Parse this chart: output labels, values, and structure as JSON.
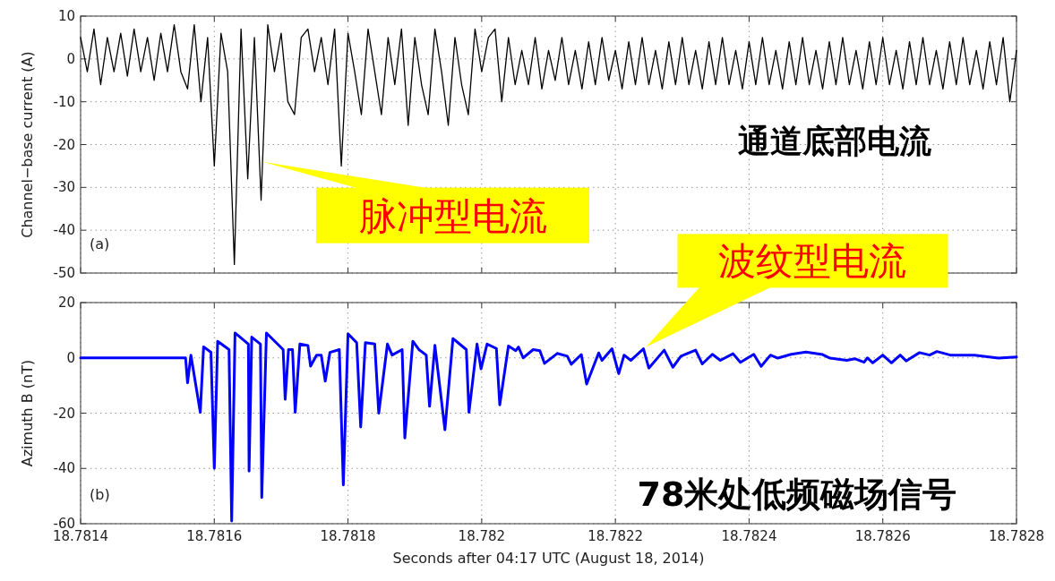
{
  "chart_data": [
    {
      "type": "line",
      "ylabel": "Channel−base current (A)",
      "color": "#000000",
      "grid": true,
      "tick_labels": "y",
      "xlim": [
        18.7814,
        18.7828
      ],
      "xticks": [
        18.7814,
        18.7816,
        18.7818,
        18.782,
        18.7822,
        18.7824,
        18.7826,
        18.7828
      ],
      "ylim": [
        -50,
        10
      ],
      "yticks": [
        -50,
        -40,
        -30,
        -20,
        -10,
        0,
        10
      ],
      "x": [
        18.7814,
        18.78141,
        18.78142,
        18.78143,
        18.78144,
        18.78145,
        18.78146,
        18.78147,
        18.78148,
        18.78149,
        18.7815,
        18.78151,
        18.78152,
        18.78153,
        18.78154,
        18.78155,
        18.78156,
        18.78157,
        18.78158,
        18.78159,
        18.7816,
        18.78161,
        18.78162,
        18.78163,
        18.78164,
        18.78165,
        18.78166,
        18.78167,
        18.78168,
        18.78169,
        18.7817,
        18.78171,
        18.78172,
        18.78173,
        18.78174,
        18.78175,
        18.78176,
        18.78177,
        18.78178,
        18.78179,
        18.7818,
        18.78181,
        18.78182,
        18.78183,
        18.78184,
        18.78185,
        18.78186,
        18.78187,
        18.78188,
        18.78189,
        18.7819,
        18.78191,
        18.78192,
        18.78193,
        18.78194,
        18.78195,
        18.78196,
        18.78197,
        18.78198,
        18.78199,
        18.782,
        18.78201,
        18.78202,
        18.78203,
        18.78204,
        18.78205,
        18.78206,
        18.78207,
        18.78208,
        18.78209,
        18.7821,
        18.78211,
        18.78212,
        18.78213,
        18.78214,
        18.78215,
        18.78216,
        18.78217,
        18.78218,
        18.78219,
        18.7822,
        18.78221,
        18.78222,
        18.78223,
        18.78224,
        18.78225,
        18.78226,
        18.78227,
        18.78228,
        18.78229,
        18.7823,
        18.78231,
        18.78232,
        18.78233,
        18.78234,
        18.78235,
        18.78236,
        18.78237,
        18.78238,
        18.78239,
        18.7824,
        18.78241,
        18.78242,
        18.78243,
        18.78244,
        18.78245,
        18.78246,
        18.78247,
        18.78248,
        18.78249,
        18.7825,
        18.78251,
        18.78252,
        18.78253,
        18.78254,
        18.78255,
        18.78256,
        18.78257,
        18.78258,
        18.78259,
        18.7826,
        18.78261,
        18.78262,
        18.78263,
        18.78264,
        18.78265,
        18.78266,
        18.78267,
        18.78268,
        18.78269,
        18.7827,
        18.78271,
        18.78272,
        18.78273,
        18.78274,
        18.78275,
        18.78276,
        18.78277,
        18.78278,
        18.78279,
        18.7828
      ],
      "values": [
        5,
        -3,
        7,
        -6,
        5,
        -3,
        6,
        -4,
        7,
        -3,
        5,
        -5,
        6,
        -3,
        8,
        -3,
        -7,
        8,
        -10,
        5,
        -25,
        6,
        -3,
        -48,
        7,
        -28,
        5,
        -33,
        8,
        -3,
        6,
        -10,
        -13,
        5,
        7,
        -3,
        5,
        -6,
        7,
        -25,
        6,
        -3,
        -13,
        7,
        -3,
        -13,
        5,
        -6,
        7,
        -15.5,
        5,
        -6,
        -13,
        7,
        -3,
        -15.5,
        5,
        -6,
        -13,
        7,
        -3,
        5,
        7,
        -10,
        5,
        -6,
        2,
        -6,
        5,
        -7,
        2,
        -5,
        5,
        -6,
        2,
        -7,
        4,
        -6,
        5,
        -5,
        2,
        -7,
        4,
        -6,
        5,
        -6,
        2,
        -7,
        4,
        -6,
        5,
        -6,
        2,
        -7,
        4,
        -6,
        5,
        -6,
        2,
        -7,
        4,
        -6,
        5,
        -6,
        2,
        -7,
        4,
        -6,
        5,
        -6,
        2,
        -7,
        4,
        -6,
        5,
        -6,
        2,
        -7,
        4,
        -6,
        5,
        -6,
        2,
        -7,
        4,
        -6,
        5,
        -6,
        2,
        -7,
        4,
        -6,
        5,
        -6,
        2,
        -7,
        4,
        -6,
        5,
        -10,
        2
      ],
      "annotations": [
        "(a)",
        "通道底部电流",
        {
          "text": "脉冲型电流",
          "x": 18.781672,
          "y": -24
        }
      ]
    },
    {
      "type": "line",
      "ylabel": "Azimuth B (nT)",
      "xlabel": "Seconds after 04:17 UTC (August 18, 2014)",
      "color": "#0000ff",
      "grid": true,
      "xlim": [
        18.7814,
        18.7828
      ],
      "xticks": [
        18.7814,
        18.7816,
        18.7818,
        18.782,
        18.7822,
        18.7824,
        18.7826,
        18.7828
      ],
      "ylim": [
        -60,
        20
      ],
      "yticks": [
        -60,
        -40,
        -20,
        0,
        20
      ],
      "x": [
        18.7814,
        18.781557,
        18.78156,
        18.781565,
        18.781579,
        18.781584,
        18.781595,
        18.7816,
        18.781605,
        18.781622,
        18.781626,
        18.781631,
        18.781651,
        18.781652,
        18.781656,
        18.781669,
        18.781671,
        18.781678,
        18.781703,
        18.781706,
        18.781711,
        18.781717,
        18.781721,
        18.781728,
        18.78174,
        18.781744,
        18.781753,
        18.78176,
        18.781766,
        18.781773,
        18.781787,
        18.781793,
        18.7818,
        18.781813,
        18.781819,
        18.781826,
        18.78184,
        18.781846,
        18.781859,
        18.781866,
        18.781881,
        18.781885,
        18.781897,
        18.781906,
        18.781917,
        18.781922,
        18.78193,
        18.781945,
        18.781957,
        18.781977,
        18.781981,
        18.781993,
        18.781999,
        18.782008,
        18.782022,
        18.782027,
        18.78204,
        18.782051,
        18.782055,
        18.782062,
        18.782077,
        18.782087,
        18.782094,
        18.782113,
        18.782128,
        18.782134,
        18.782149,
        18.782157,
        18.782175,
        18.78218,
        18.782195,
        18.782205,
        18.782213,
        18.782223,
        18.782242,
        18.78225,
        18.782273,
        18.782286,
        18.782298,
        18.78232,
        18.78233,
        18.782345,
        18.782357,
        18.782376,
        18.782387,
        18.782407,
        18.782418,
        18.782432,
        18.782443,
        18.782463,
        18.782485,
        18.78251,
        18.782521,
        18.782546,
        18.782558,
        18.782572,
        18.782577,
        18.782585,
        18.7826,
        18.782613,
        18.782626,
        18.782635,
        18.782655,
        18.78267,
        18.782681,
        18.782701,
        18.782737,
        18.782773,
        18.7828
      ],
      "values": [
        0,
        0,
        -9,
        1,
        -19.7,
        4,
        2,
        -40,
        6,
        3,
        -59,
        9,
        5,
        -41,
        7.5,
        5,
        -50.5,
        9,
        3,
        -15,
        3,
        3,
        -19.7,
        5,
        4.5,
        -3,
        1,
        1,
        -8.4,
        2,
        3,
        -46,
        8.7,
        5.5,
        -25,
        5.5,
        5,
        -20,
        5,
        1,
        3,
        -29,
        6,
        3,
        1,
        -17.5,
        4.5,
        -26,
        7,
        3,
        -19.7,
        5,
        -4,
        5,
        3.4,
        -17,
        4.3,
        2.6,
        3.9,
        0,
        3,
        2.6,
        -2,
        1.6,
        0.6,
        -2.3,
        1.2,
        -9.5,
        1.8,
        -0.9,
        3.3,
        -5.7,
        1,
        -0.9,
        3.3,
        -3.7,
        2.8,
        -3.4,
        0.6,
        2.8,
        -2.2,
        1.3,
        -0.9,
        1.5,
        -1.6,
        1.3,
        -3.1,
        1,
        -0.1,
        1.3,
        2.1,
        1.2,
        -0.1,
        -0.9,
        -0.3,
        -1.6,
        0,
        -1.8,
        1,
        -1.8,
        1,
        -1.1,
        1.9,
        1,
        2.3,
        1,
        1,
        -0.1,
        0.3
      ],
      "annotations": [
        "(b)",
        "78米处低频磁场信号",
        {
          "text": "波纹型电流",
          "x": 18.782246,
          "y": 4
        }
      ]
    }
  ]
}
